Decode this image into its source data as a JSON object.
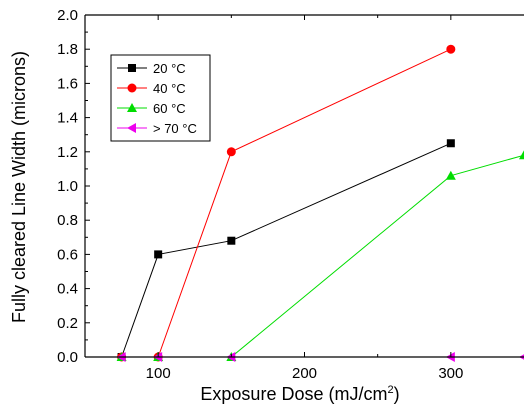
{
  "chart_data": {
    "type": "line",
    "title": "",
    "xlabel": "Exposure Dose (mJ/cm",
    "xlabel_sup": "2",
    "xlabel_suffix": ")",
    "ylabel": "Fully cleared Line Width (microns)",
    "xlim": [
      50,
      350
    ],
    "ylim": [
      0.0,
      2.0
    ],
    "x_ticks": [
      {
        "value": 100,
        "label": "100"
      },
      {
        "value": 150,
        "label": ""
      },
      {
        "value": 200,
        "label": "200"
      },
      {
        "value": 250,
        "label": ""
      },
      {
        "value": 300,
        "label": "300"
      }
    ],
    "y_ticks": [
      {
        "value": 0.0,
        "label": "0.0"
      },
      {
        "value": 0.2,
        "label": "0.2"
      },
      {
        "value": 0.4,
        "label": "0.4"
      },
      {
        "value": 0.6,
        "label": "0.6"
      },
      {
        "value": 0.8,
        "label": "0.8"
      },
      {
        "value": 1.0,
        "label": "1.0"
      },
      {
        "value": 1.2,
        "label": "1.2"
      },
      {
        "value": 1.4,
        "label": "1.4"
      },
      {
        "value": 1.6,
        "label": "1.6"
      },
      {
        "value": 1.8,
        "label": "1.8"
      },
      {
        "value": 2.0,
        "label": "2.0"
      }
    ],
    "grid": false,
    "legend_position": "top-left",
    "series": [
      {
        "name": "20 °C",
        "color": "#000000",
        "marker": "square",
        "x": [
          75,
          100,
          150,
          300
        ],
        "y": [
          0.0,
          0.6,
          0.68,
          1.25
        ]
      },
      {
        "name": "40 °C",
        "color": "#ff0000",
        "marker": "circle",
        "x": [
          75,
          100,
          150,
          300
        ],
        "y": [
          0.0,
          0.0,
          1.2,
          1.8
        ]
      },
      {
        "name": "60 °C",
        "color": "#00dd00",
        "marker": "triangle-up",
        "x": [
          75,
          100,
          150,
          300,
          350
        ],
        "y": [
          0.0,
          0.0,
          0.0,
          1.06,
          1.18
        ]
      },
      {
        "name": "> 70 °C",
        "color": "#ee00ee",
        "marker": "triangle-left",
        "x": [
          75,
          100,
          150,
          300,
          350
        ],
        "y": [
          0.0,
          0.0,
          0.0,
          0.0,
          0.0
        ]
      }
    ]
  }
}
